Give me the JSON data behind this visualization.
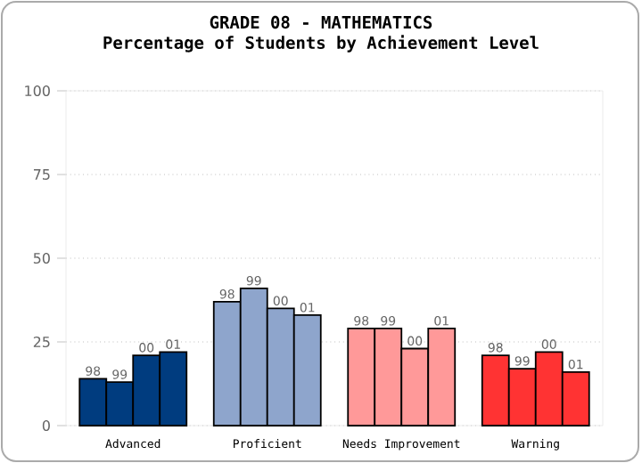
{
  "chart_data": {
    "type": "bar",
    "title": "GRADE 08 - MATHEMATICS",
    "subtitle": "Percentage of Students by Achievement Level",
    "categories": [
      "Advanced",
      "Proficient",
      "Needs Improvement",
      "Warning"
    ],
    "series": [
      {
        "name": "98",
        "colors": [
          "#003c7f",
          "#8ea5cc",
          "#ff9999",
          "#ff3333"
        ],
        "values": [
          14,
          37,
          29,
          21
        ]
      },
      {
        "name": "99",
        "colors": [
          "#003c7f",
          "#8ea5cc",
          "#ff9999",
          "#ff3333"
        ],
        "values": [
          13,
          41,
          29,
          17
        ]
      },
      {
        "name": "00",
        "colors": [
          "#003c7f",
          "#8ea5cc",
          "#ff9999",
          "#ff3333"
        ],
        "values": [
          21,
          35,
          23,
          22
        ]
      },
      {
        "name": "01",
        "colors": [
          "#003c7f",
          "#8ea5cc",
          "#ff9999",
          "#ff3333"
        ],
        "values": [
          22,
          33,
          29,
          16
        ]
      }
    ],
    "ylim": [
      0,
      100
    ],
    "yticks": [
      0,
      25,
      50,
      75,
      100
    ],
    "grid": "y"
  }
}
